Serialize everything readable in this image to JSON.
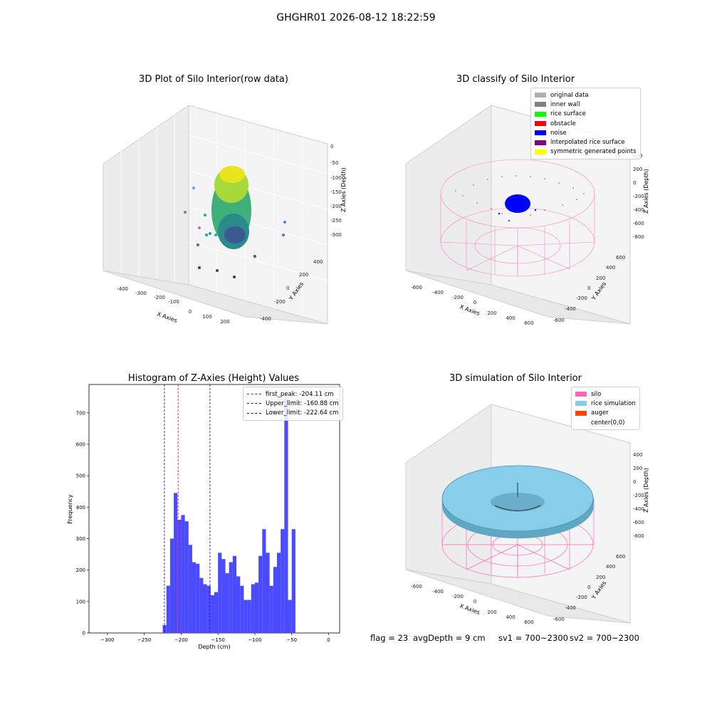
{
  "suptitle": "GHGHR01 2026-08-12 18:22:59",
  "panels": {
    "raw": {
      "title": "3D Plot of Silo Interior(row data)",
      "xlabel": "X Axies",
      "ylabel": "Y Axies",
      "zlabel": "Z Axies (Depth)",
      "xticks": [
        "-400",
        "-300",
        "-200",
        "-100",
        "0",
        "100",
        "200"
      ],
      "yticks": [
        "-400",
        "-200",
        "0",
        "200",
        "400"
      ],
      "zticks": [
        "0",
        "-50",
        "-100",
        "-150",
        "-200",
        "-250",
        "-300"
      ]
    },
    "classify": {
      "title": "3D classify of Silo Interior",
      "xlabel": "X Axies",
      "ylabel": "Y Axies",
      "zlabel": "Z Axies (Depth)",
      "xticks": [
        "-600",
        "-400",
        "-200",
        "0",
        "200",
        "400",
        "600"
      ],
      "yticks": [
        "-600",
        "-400",
        "-200",
        "0",
        "200",
        "400",
        "600"
      ],
      "zticks": [
        "400",
        "200",
        "0",
        "-200",
        "-400",
        "-600",
        "-800"
      ],
      "legend": [
        {
          "label": "original data",
          "color": "#b0b0b0"
        },
        {
          "label": "inner wall",
          "color": "#808080"
        },
        {
          "label": "rice surface",
          "color": "#00ff00"
        },
        {
          "label": "obstacle",
          "color": "#ff0000"
        },
        {
          "label": "noise",
          "color": "#0000ff"
        },
        {
          "label": "interpolated rice surface",
          "color": "#800080"
        },
        {
          "label": "symmetric generated points",
          "color": "#ffff00"
        }
      ]
    },
    "simulation": {
      "title": "3D simulation of Silo Interior",
      "xlabel": "X Axies",
      "ylabel": "Y Axies",
      "zlabel": "Z Axies (Depth)",
      "xticks": [
        "-600",
        "-400",
        "-200",
        "0",
        "200",
        "400",
        "600"
      ],
      "yticks": [
        "-600",
        "-400",
        "-200",
        "0",
        "200",
        "400",
        "600"
      ],
      "zticks": [
        "400",
        "200",
        "0",
        "-200",
        "-400",
        "-600",
        "-800"
      ],
      "legend": [
        {
          "label": "silo",
          "color": "#ff69b4"
        },
        {
          "label": "rice simulation",
          "color": "#87ceeb"
        },
        {
          "label": "auger",
          "color": "#ff4500"
        },
        {
          "label": "center(0,0)",
          "color": "#ffffff"
        }
      ]
    }
  },
  "chart_data": {
    "type": "bar",
    "title": "Histogram of Z-Axies (Height) Values",
    "xlabel": "Depth (cm)",
    "ylabel": "Frequency",
    "xlim": [
      -325,
      15
    ],
    "ylim": [
      0,
      790
    ],
    "xticks": [
      -300,
      -250,
      -200,
      -150,
      -100,
      -50,
      0
    ],
    "yticks": [
      0,
      100,
      200,
      300,
      400,
      500,
      600,
      700
    ],
    "bin_start": -225,
    "bin_width": 5,
    "values": [
      25,
      150,
      300,
      445,
      360,
      375,
      355,
      280,
      225,
      220,
      175,
      155,
      150,
      120,
      130,
      255,
      235,
      190,
      225,
      245,
      180,
      150,
      105,
      105,
      155,
      160,
      245,
      330,
      255,
      150,
      210,
      255,
      330,
      745,
      105,
      330
    ],
    "bar_color": "#4a4aff",
    "lines": [
      {
        "label": "first_peak: -204.11 cm",
        "x": -204.11,
        "color": "#ff0000"
      },
      {
        "label": "Upper_limit: -160.88 cm",
        "x": -160.88,
        "color": "#0000cc"
      },
      {
        "label": "Lower_limit: -222.64 cm",
        "x": -222.64,
        "color": "#0000cc"
      }
    ]
  },
  "footer": {
    "flag": "flag = 23",
    "avg_depth": "avgDepth = 9 cm",
    "sv1": "sv1 = 700~2300",
    "sv2": "sv2 = 700~2300"
  }
}
